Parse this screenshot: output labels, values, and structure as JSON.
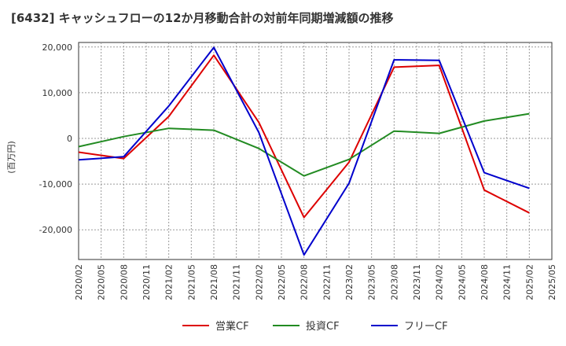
{
  "chart_data": {
    "type": "line",
    "title": "[6432]  キャッシュフローの12か月移動合計の対前年同期増減額の推移",
    "ylabel": "(百万円)",
    "xlabel": "",
    "ylim": [
      -26500,
      21000
    ],
    "yticks": [
      20000,
      10000,
      0,
      -10000,
      -20000
    ],
    "ytick_labels": [
      "20,000",
      "10,000",
      "0",
      "-10,000",
      "-20,000"
    ],
    "x_labels": [
      "2020/02",
      "2020/05",
      "2020/08",
      "2020/11",
      "2021/02",
      "2021/05",
      "2021/08",
      "2021/11",
      "2022/02",
      "2022/05",
      "2022/08",
      "2022/11",
      "2023/02",
      "2023/05",
      "2023/08",
      "2023/11",
      "2024/02",
      "2024/05",
      "2024/08",
      "2024/11",
      "2025/02",
      "2025/05"
    ],
    "series": [
      {
        "name": "営業CF",
        "color": "#dd0000",
        "points": [
          [
            0,
            -3000
          ],
          [
            2,
            -4400
          ],
          [
            4,
            4800
          ],
          [
            6,
            18200
          ],
          [
            8,
            3500
          ],
          [
            10,
            -17300
          ],
          [
            12,
            -5200
          ],
          [
            14,
            15600
          ],
          [
            16,
            16000
          ],
          [
            18,
            -11300
          ],
          [
            20,
            -16300
          ]
        ]
      },
      {
        "name": "投資CF",
        "color": "#228B22",
        "points": [
          [
            0,
            -1800
          ],
          [
            2,
            400
          ],
          [
            4,
            2200
          ],
          [
            6,
            1800
          ],
          [
            8,
            -2200
          ],
          [
            10,
            -8200
          ],
          [
            12,
            -4600
          ],
          [
            14,
            1600
          ],
          [
            16,
            1100
          ],
          [
            18,
            3800
          ],
          [
            20,
            5400
          ]
        ]
      },
      {
        "name": "フリーCF",
        "color": "#0000cc",
        "points": [
          [
            0,
            -4700
          ],
          [
            2,
            -4000
          ],
          [
            4,
            7100
          ],
          [
            6,
            19900
          ],
          [
            8,
            1300
          ],
          [
            10,
            -25500
          ],
          [
            12,
            -9800
          ],
          [
            14,
            17200
          ],
          [
            16,
            17100
          ],
          [
            18,
            -7500
          ],
          [
            20,
            -10900
          ]
        ]
      }
    ]
  }
}
